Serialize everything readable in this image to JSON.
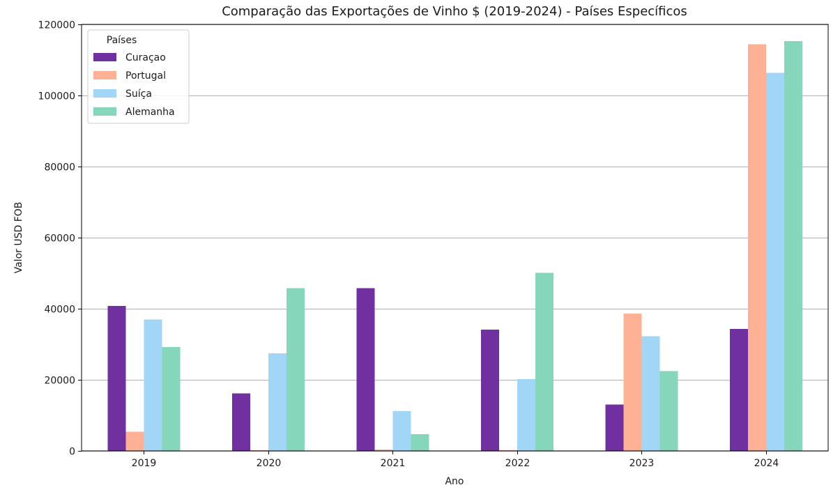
{
  "chart_data": {
    "type": "bar",
    "title": "Comparação das Exportações de Vinho $ (2019-2024) - Países Específicos",
    "xlabel": "Ano",
    "ylabel": "Valor USD FOB",
    "categories": [
      "2019",
      "2020",
      "2021",
      "2022",
      "2023",
      "2024"
    ],
    "series": [
      {
        "name": "Curaçao",
        "color": "#7030A0",
        "values": [
          40800,
          16200,
          45800,
          34100,
          13000,
          34300
        ]
      },
      {
        "name": "Portugal",
        "color": "#FFB196",
        "values": [
          5400,
          200,
          400,
          200,
          38600,
          114400
        ]
      },
      {
        "name": "Suíça",
        "color": "#A1D6F7",
        "values": [
          37000,
          27500,
          11200,
          20200,
          32300,
          106400
        ]
      },
      {
        "name": "Alemanha",
        "color": "#85D6BA",
        "values": [
          29200,
          45800,
          4700,
          50100,
          22500,
          115300
        ]
      }
    ],
    "ylim": [
      0,
      120000
    ],
    "yticks": [
      0,
      20000,
      40000,
      60000,
      80000,
      100000,
      120000
    ],
    "grid": {
      "y": true,
      "x": false
    },
    "legend": {
      "title": "Países",
      "position": "top-left"
    }
  }
}
